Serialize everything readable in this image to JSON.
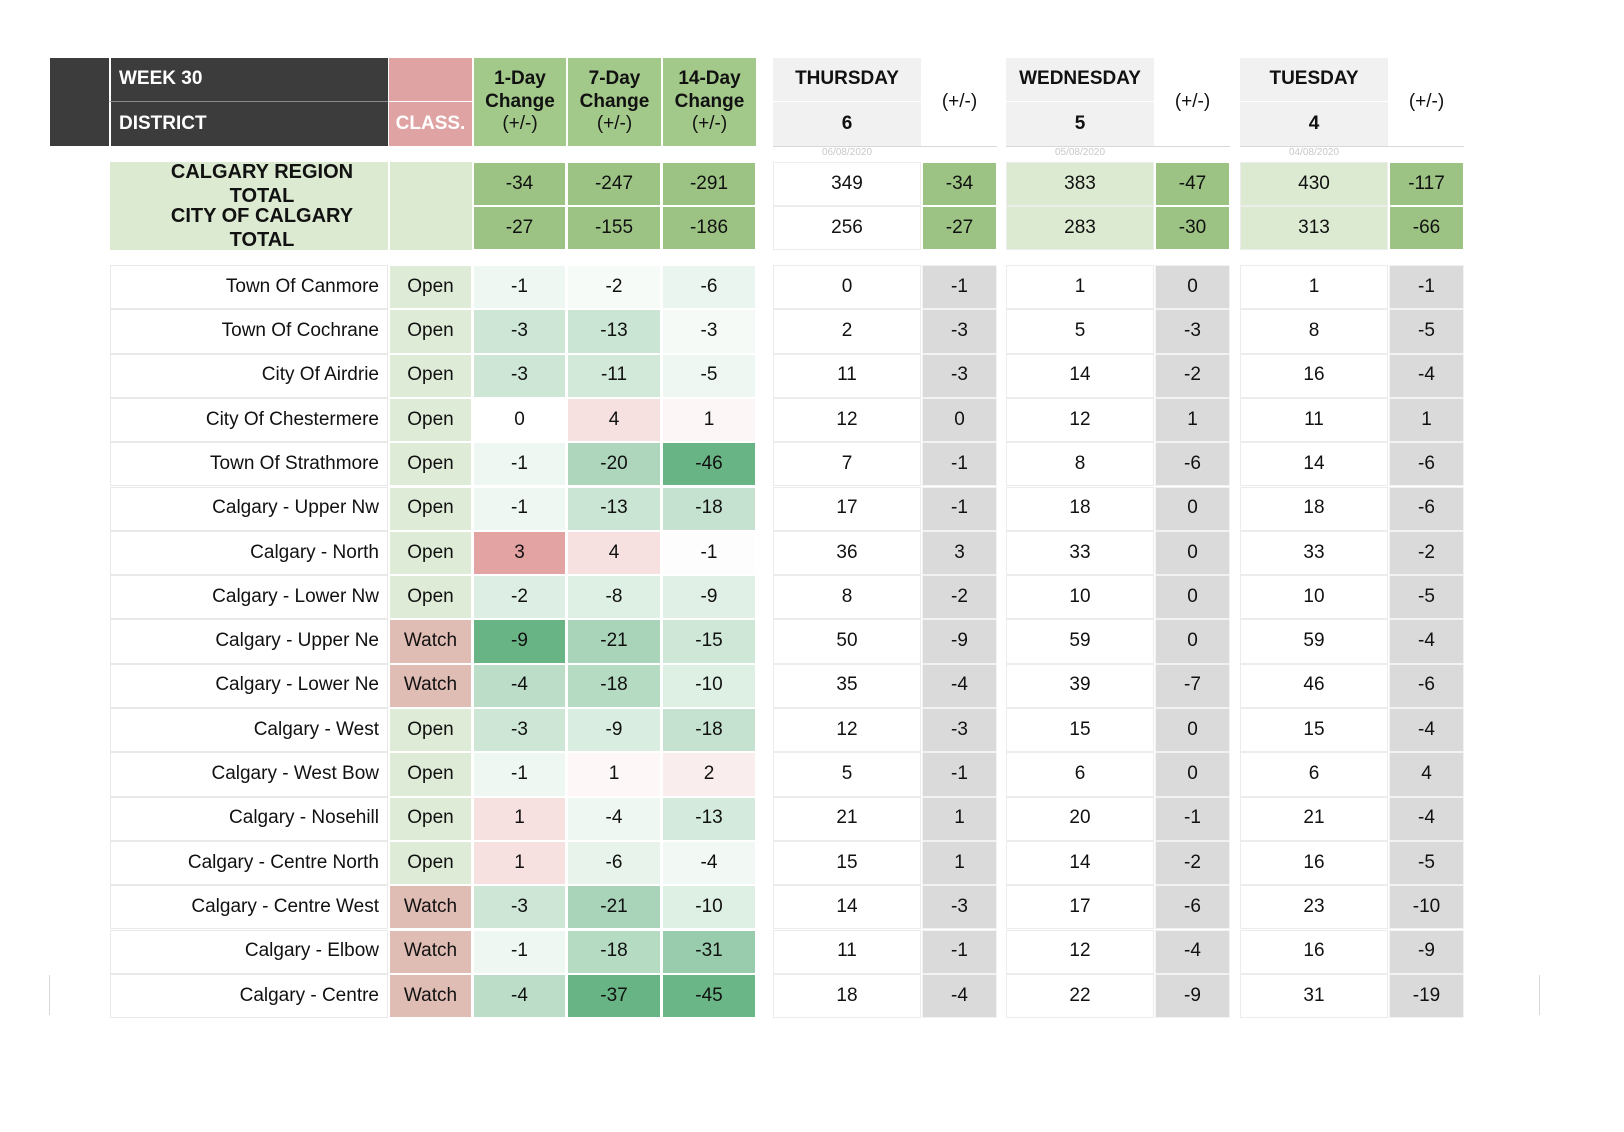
{
  "header": {
    "week": "WEEK 30",
    "district": "DISTRICT",
    "class": "CLASS.",
    "change_1d": [
      "1-Day",
      "Change",
      "(+/-)"
    ],
    "change_7d": [
      "7-Day",
      "Change",
      "(+/-)"
    ],
    "change_14d": [
      "14-Day",
      "Change",
      "(+/-)"
    ],
    "days": [
      {
        "name": "THURSDAY",
        "num": "6",
        "pm": "(+/-)",
        "date": "06/08/2020"
      },
      {
        "name": "WEDNESDAY",
        "num": "5",
        "pm": "(+/-)",
        "date": "05/08/2020"
      },
      {
        "name": "TUESDAY",
        "num": "4",
        "pm": "(+/-)",
        "date": "04/08/2020"
      }
    ]
  },
  "totals": [
    {
      "name": "CALGARY REGION TOTAL",
      "c1": "-34",
      "c7": "-247",
      "c14": "-291",
      "d": [
        [
          "349",
          "-34"
        ],
        [
          "383",
          "-47"
        ],
        [
          "430",
          "-117"
        ]
      ]
    },
    {
      "name": "CITY OF CALGARY TOTAL",
      "c1": "-27",
      "c7": "-155",
      "c14": "-186",
      "d": [
        [
          "256",
          "-27"
        ],
        [
          "283",
          "-30"
        ],
        [
          "313",
          "-66"
        ]
      ]
    }
  ],
  "rows": [
    {
      "name": "Town Of Canmore",
      "cls": "Open",
      "c1": "-1",
      "c7": "-2",
      "c14": "-6",
      "d": [
        [
          "0",
          "-1"
        ],
        [
          "1",
          "0"
        ],
        [
          "1",
          "-1"
        ]
      ]
    },
    {
      "name": "Town Of Cochrane",
      "cls": "Open",
      "c1": "-3",
      "c7": "-13",
      "c14": "-3",
      "d": [
        [
          "2",
          "-3"
        ],
        [
          "5",
          "-3"
        ],
        [
          "8",
          "-5"
        ]
      ]
    },
    {
      "name": "City Of Airdrie",
      "cls": "Open",
      "c1": "-3",
      "c7": "-11",
      "c14": "-5",
      "d": [
        [
          "11",
          "-3"
        ],
        [
          "14",
          "-2"
        ],
        [
          "16",
          "-4"
        ]
      ]
    },
    {
      "name": "City Of Chestermere",
      "cls": "Open",
      "c1": "0",
      "c7": "4",
      "c14": "1",
      "d": [
        [
          "12",
          "0"
        ],
        [
          "12",
          "1"
        ],
        [
          "11",
          "1"
        ]
      ]
    },
    {
      "name": "Town Of Strathmore",
      "cls": "Open",
      "c1": "-1",
      "c7": "-20",
      "c14": "-46",
      "d": [
        [
          "7",
          "-1"
        ],
        [
          "8",
          "-6"
        ],
        [
          "14",
          "-6"
        ]
      ]
    },
    {
      "name": "Calgary - Upper Nw",
      "cls": "Open",
      "c1": "-1",
      "c7": "-13",
      "c14": "-18",
      "d": [
        [
          "17",
          "-1"
        ],
        [
          "18",
          "0"
        ],
        [
          "18",
          "-6"
        ]
      ]
    },
    {
      "name": "Calgary - North",
      "cls": "Open",
      "c1": "3",
      "c7": "4",
      "c14": "-1",
      "d": [
        [
          "36",
          "3"
        ],
        [
          "33",
          "0"
        ],
        [
          "33",
          "-2"
        ]
      ]
    },
    {
      "name": "Calgary - Lower Nw",
      "cls": "Open",
      "c1": "-2",
      "c7": "-8",
      "c14": "-9",
      "d": [
        [
          "8",
          "-2"
        ],
        [
          "10",
          "0"
        ],
        [
          "10",
          "-5"
        ]
      ]
    },
    {
      "name": "Calgary - Upper Ne",
      "cls": "Watch",
      "c1": "-9",
      "c7": "-21",
      "c14": "-15",
      "d": [
        [
          "50",
          "-9"
        ],
        [
          "59",
          "0"
        ],
        [
          "59",
          "-4"
        ]
      ]
    },
    {
      "name": "Calgary - Lower Ne",
      "cls": "Watch",
      "c1": "-4",
      "c7": "-18",
      "c14": "-10",
      "d": [
        [
          "35",
          "-4"
        ],
        [
          "39",
          "-7"
        ],
        [
          "46",
          "-6"
        ]
      ]
    },
    {
      "name": "Calgary - West",
      "cls": "Open",
      "c1": "-3",
      "c7": "-9",
      "c14": "-18",
      "d": [
        [
          "12",
          "-3"
        ],
        [
          "15",
          "0"
        ],
        [
          "15",
          "-4"
        ]
      ]
    },
    {
      "name": "Calgary - West Bow",
      "cls": "Open",
      "c1": "-1",
      "c7": "1",
      "c14": "2",
      "d": [
        [
          "5",
          "-1"
        ],
        [
          "6",
          "0"
        ],
        [
          "6",
          "4"
        ]
      ]
    },
    {
      "name": "Calgary - Nosehill",
      "cls": "Open",
      "c1": "1",
      "c7": "-4",
      "c14": "-13",
      "d": [
        [
          "21",
          "1"
        ],
        [
          "20",
          "-1"
        ],
        [
          "21",
          "-4"
        ]
      ]
    },
    {
      "name": "Calgary - Centre North",
      "cls": "Open",
      "c1": "1",
      "c7": "-6",
      "c14": "-4",
      "d": [
        [
          "15",
          "1"
        ],
        [
          "14",
          "-2"
        ],
        [
          "16",
          "-5"
        ]
      ]
    },
    {
      "name": "Calgary - Centre West",
      "cls": "Watch",
      "c1": "-3",
      "c7": "-21",
      "c14": "-10",
      "d": [
        [
          "14",
          "-3"
        ],
        [
          "17",
          "-6"
        ],
        [
          "23",
          "-10"
        ]
      ]
    },
    {
      "name": "Calgary - Elbow",
      "cls": "Watch",
      "c1": "-1",
      "c7": "-18",
      "c14": "-31",
      "d": [
        [
          "11",
          "-1"
        ],
        [
          "12",
          "-4"
        ],
        [
          "16",
          "-9"
        ]
      ]
    },
    {
      "name": "Calgary - Centre",
      "cls": "Watch",
      "c1": "-4",
      "c7": "-37",
      "c14": "-45",
      "d": [
        [
          "18",
          "-4"
        ],
        [
          "22",
          "-9"
        ],
        [
          "31",
          "-19"
        ]
      ]
    }
  ],
  "colors": {
    "header_dark": "#3c3c3c",
    "header_pink": "#e0a3a3",
    "header_green": "#a3c98a",
    "total_green": "#9cc383",
    "total_light": "#dcead1",
    "open_class": "#deebd6",
    "watch_class": "#dfbcb4",
    "pm_gray": "#dadada"
  }
}
